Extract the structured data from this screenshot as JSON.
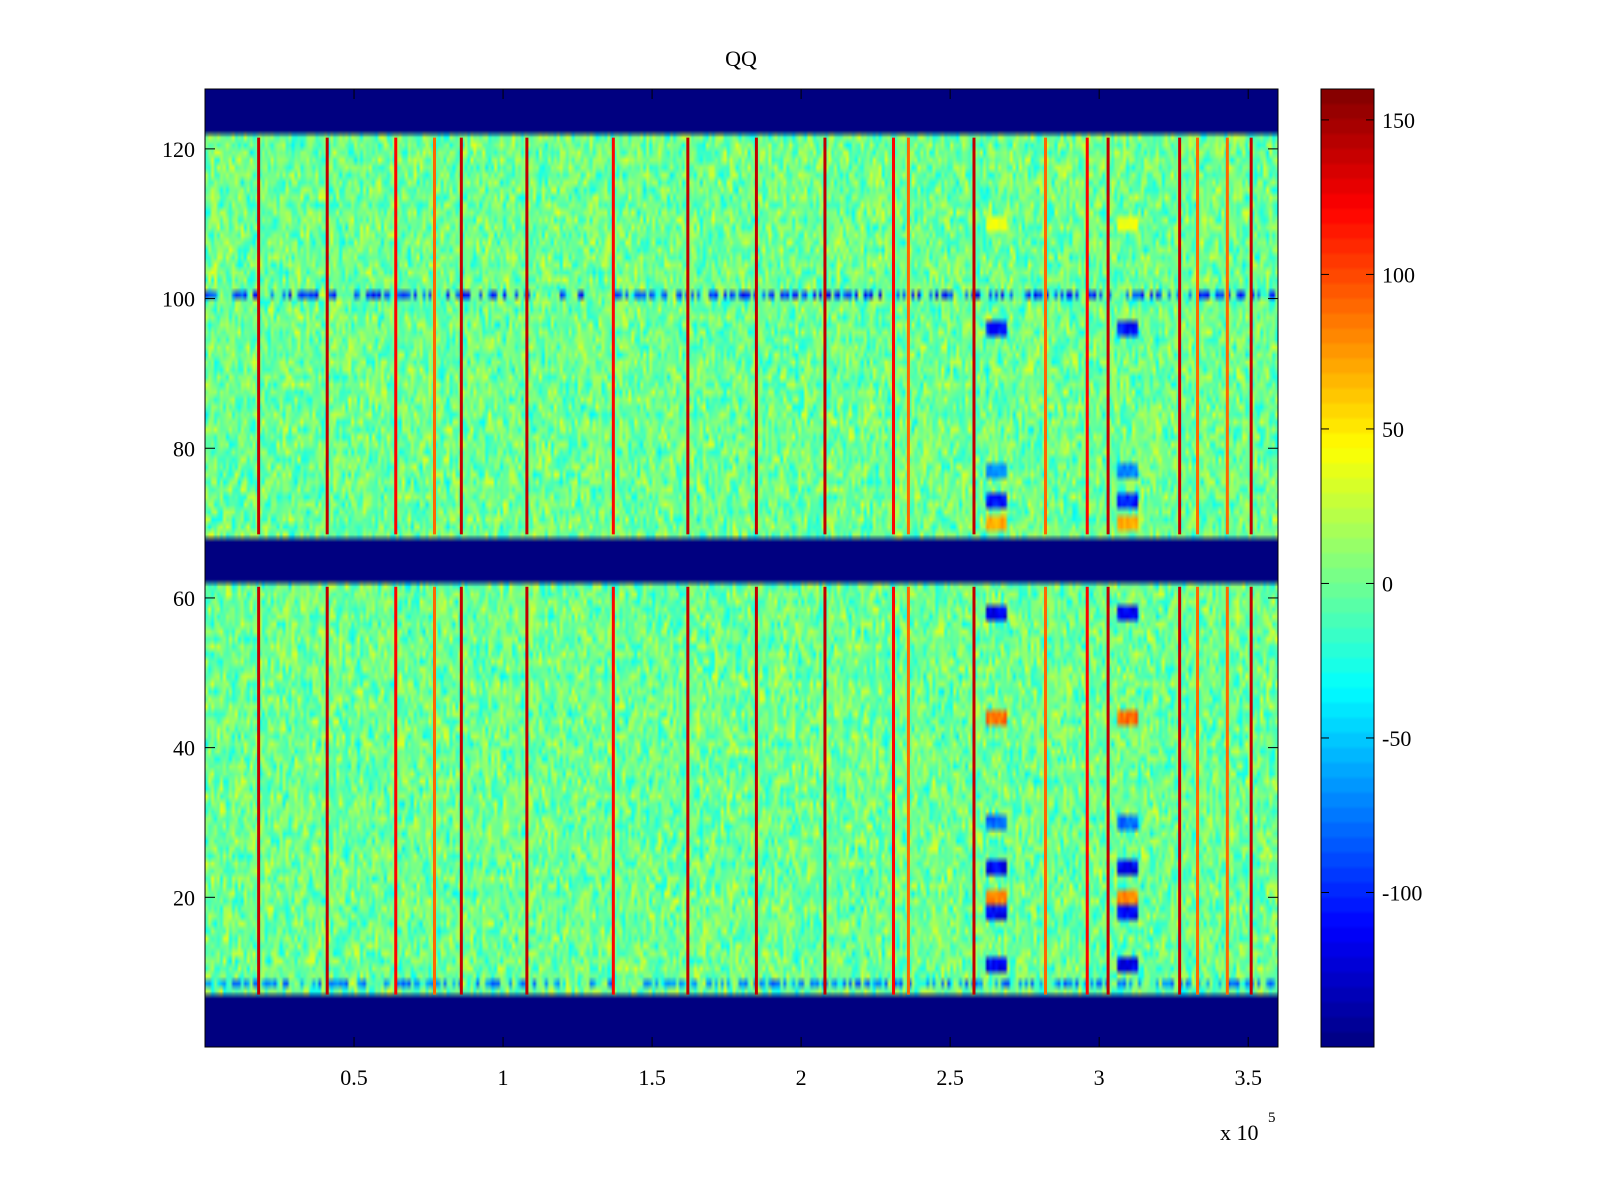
{
  "chart_data": {
    "type": "heatmap",
    "title": "QQ",
    "xlabel": "",
    "ylabel": "",
    "x_multiplier_label": "x 10",
    "x_multiplier_exponent": "5",
    "xlim": [
      0,
      3.6
    ],
    "ylim": [
      0,
      128
    ],
    "x_ticks": [
      0.5,
      1,
      1.5,
      2,
      2.5,
      3,
      3.5
    ],
    "x_tick_labels": [
      "0.5",
      "1",
      "1.5",
      "2",
      "2.5",
      "3",
      "3.5"
    ],
    "y_ticks": [
      20,
      40,
      60,
      80,
      100,
      120
    ],
    "y_tick_labels": [
      "20",
      "40",
      "60",
      "80",
      "100",
      "120"
    ],
    "colorbar": {
      "colormap": "jet",
      "range": [
        -150,
        160
      ],
      "ticks": [
        150,
        100,
        50,
        0,
        -50,
        -100
      ],
      "tick_labels": [
        "150",
        "100",
        "50",
        "0",
        "-50",
        "-100"
      ]
    },
    "background_value": -150,
    "background_color": "#00008f",
    "data_bands": [
      {
        "y_range": [
          7,
          61.5
        ]
      },
      {
        "y_range": [
          68.5,
          121.5
        ]
      }
    ],
    "noise_mean": 0,
    "noise_range": [
      -40,
      40
    ],
    "vertical_stripes": [
      {
        "x": 0.18,
        "value": 140
      },
      {
        "x": 0.41,
        "value": 140
      },
      {
        "x": 0.64,
        "value": 120
      },
      {
        "x": 0.77,
        "value": 90
      },
      {
        "x": 0.86,
        "value": 140
      },
      {
        "x": 1.08,
        "value": 140
      },
      {
        "x": 1.37,
        "value": 120
      },
      {
        "x": 1.62,
        "value": 140
      },
      {
        "x": 1.85,
        "value": 140
      },
      {
        "x": 2.08,
        "value": 140
      },
      {
        "x": 2.31,
        "value": 120
      },
      {
        "x": 2.36,
        "value": 90
      },
      {
        "x": 2.58,
        "value": 140
      },
      {
        "x": 2.82,
        "value": 90
      },
      {
        "x": 2.96,
        "value": 120
      },
      {
        "x": 3.03,
        "value": 140
      },
      {
        "x": 3.27,
        "value": 140
      },
      {
        "x": 3.33,
        "value": 90
      },
      {
        "x": 3.43,
        "value": 90
      },
      {
        "x": 3.51,
        "value": 140
      }
    ],
    "horizontal_features": [
      {
        "y": 100.5,
        "value": -120
      },
      {
        "y": 8.5,
        "value": -90
      }
    ],
    "highlight_columns": [
      {
        "x_range": [
          2.62,
          2.69
        ],
        "rows": [
          {
            "y": 110,
            "value": 45
          },
          {
            "y": 96,
            "value": -120
          },
          {
            "y": 77,
            "value": -80
          },
          {
            "y": 73,
            "value": -120
          },
          {
            "y": 70,
            "value": 80
          },
          {
            "y": 58,
            "value": -130
          },
          {
            "y": 44,
            "value": 100
          },
          {
            "y": 30,
            "value": -90
          },
          {
            "y": 24,
            "value": -130
          },
          {
            "y": 20,
            "value": 90
          },
          {
            "y": 18,
            "value": -130
          },
          {
            "y": 11,
            "value": -130
          }
        ]
      },
      {
        "x_range": [
          3.06,
          3.13
        ],
        "rows": [
          {
            "y": 110,
            "value": 45
          },
          {
            "y": 96,
            "value": -120
          },
          {
            "y": 77,
            "value": -80
          },
          {
            "y": 73,
            "value": -120
          },
          {
            "y": 70,
            "value": 80
          },
          {
            "y": 58,
            "value": -130
          },
          {
            "y": 44,
            "value": 100
          },
          {
            "y": 30,
            "value": -90
          },
          {
            "y": 24,
            "value": -130
          },
          {
            "y": 20,
            "value": 90
          },
          {
            "y": 18,
            "value": -130
          },
          {
            "y": 11,
            "value": -130
          }
        ]
      }
    ]
  }
}
